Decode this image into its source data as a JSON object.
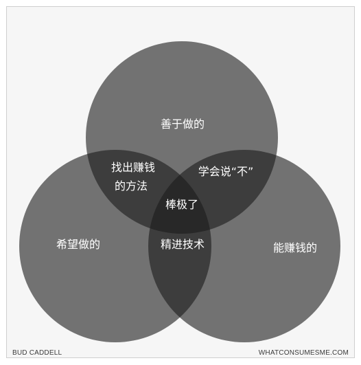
{
  "venn": {
    "circles": {
      "top": "善于做的",
      "left": "希望做的",
      "right": "能赚钱的"
    },
    "overlaps": {
      "top_left": [
        "找出赚钱",
        "的方法"
      ],
      "top_right": "学会说“不”",
      "left_right": "精进技术",
      "center": "棒极了"
    }
  },
  "footer": {
    "left_credit": "BUD CADDELL",
    "right_credit": "WHATCONSUMESME.COM"
  },
  "colors": {
    "circle_fill": "#1a1a1a",
    "page_background": "#f6f6f6",
    "label_text": "#ffffff"
  }
}
